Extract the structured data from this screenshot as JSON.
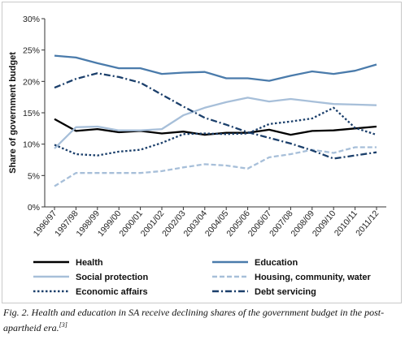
{
  "chart_data": {
    "type": "line",
    "title": "",
    "ylabel": "Share of government budget",
    "xlabel": "",
    "ylim": [
      0,
      30
    ],
    "y_ticks": [
      0,
      5,
      10,
      15,
      20,
      25,
      30
    ],
    "y_tick_labels": [
      "0%",
      "5%",
      "10%",
      "15%",
      "20%",
      "25%",
      "30%"
    ],
    "grid": false,
    "legend_position": "bottom",
    "categories": [
      "1996/97",
      "1997/98",
      "1998/99",
      "1999/00",
      "2000/01",
      "2001/02",
      "2002/03",
      "2003/04",
      "2004/05",
      "2005/06",
      "2006/07",
      "2007/08",
      "2008/09",
      "2009/10",
      "2010/11",
      "2011/12"
    ],
    "series": [
      {
        "name": "Health",
        "color": "#000000",
        "dash": "solid",
        "values": [
          14.0,
          12.1,
          12.4,
          11.9,
          12.1,
          11.7,
          12.0,
          11.5,
          11.8,
          11.8,
          12.3,
          11.5,
          12.1,
          12.2,
          12.5,
          12.8
        ]
      },
      {
        "name": "Education",
        "color": "#4a7bab",
        "dash": "solid",
        "values": [
          24.1,
          23.8,
          22.9,
          22.1,
          22.1,
          21.2,
          21.4,
          21.5,
          20.5,
          20.5,
          20.1,
          20.9,
          21.6,
          21.2,
          21.7,
          22.7
        ]
      },
      {
        "name": "Social protection",
        "color": "#a7bfd9",
        "dash": "solid",
        "values": [
          9.3,
          12.7,
          12.8,
          12.2,
          12.2,
          12.4,
          14.6,
          15.8,
          16.7,
          17.4,
          16.8,
          17.2,
          16.8,
          16.4,
          16.3,
          16.2
        ]
      },
      {
        "name": "Housing, community, water",
        "color": "#a7bfd9",
        "dash": "dashed",
        "values": [
          3.3,
          5.4,
          5.4,
          5.4,
          5.4,
          5.7,
          6.3,
          6.8,
          6.6,
          6.1,
          7.9,
          8.4,
          9.1,
          8.6,
          9.5,
          9.5
        ]
      },
      {
        "name": "Economic affairs",
        "color": "#1b3f6b",
        "dash": "dotted",
        "values": [
          9.9,
          8.4,
          8.2,
          8.8,
          9.1,
          10.2,
          11.6,
          11.7,
          11.6,
          11.7,
          13.2,
          13.6,
          14.1,
          15.8,
          12.6,
          11.5
        ]
      },
      {
        "name": "Debt servicing",
        "color": "#1b3f6b",
        "dash": "dashdot",
        "values": [
          19.0,
          20.4,
          21.3,
          20.7,
          19.8,
          17.9,
          16.0,
          14.2,
          13.1,
          11.9,
          11.0,
          10.1,
          9.0,
          7.7,
          8.2,
          8.7
        ]
      }
    ]
  },
  "caption": {
    "text": "Fig. 2. Health and education in SA receive declining shares of the government budget in the post-apartheid era.",
    "reference": "[3]"
  }
}
